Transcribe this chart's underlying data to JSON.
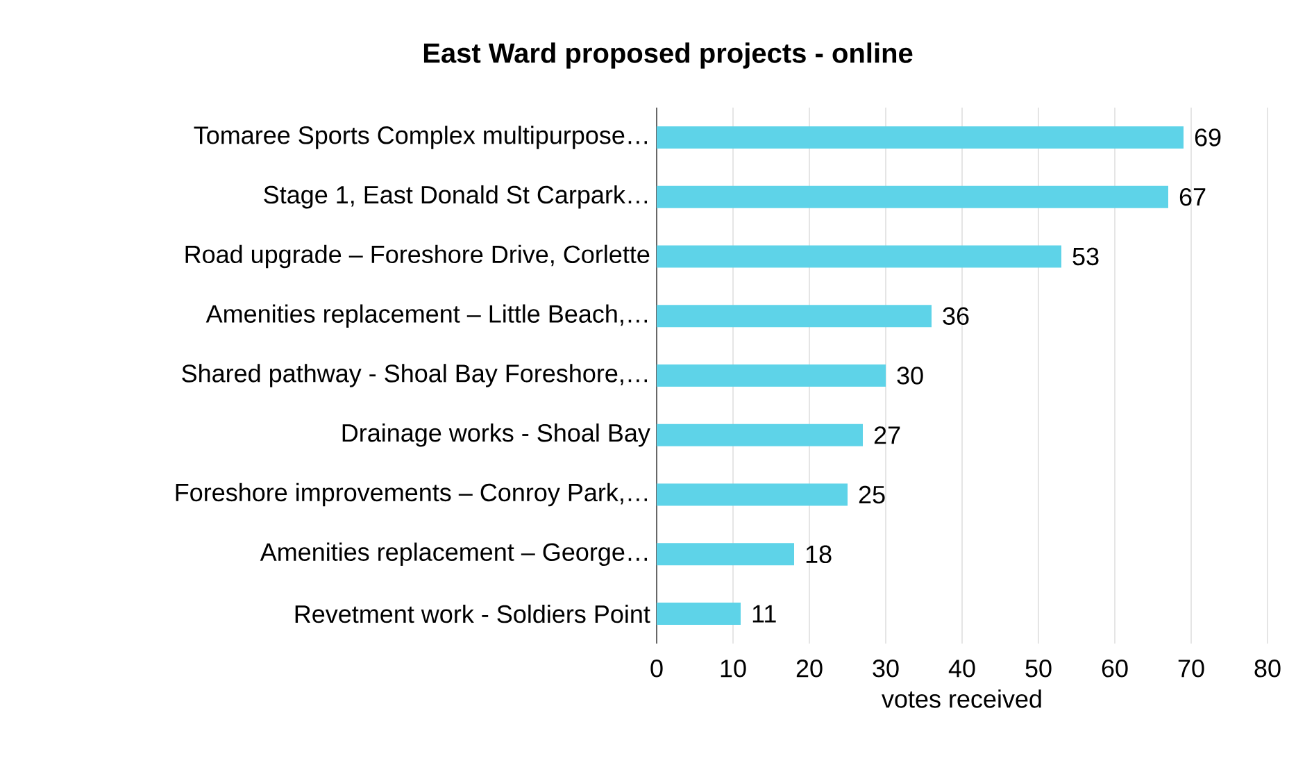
{
  "chart_data": {
    "type": "bar",
    "orientation": "horizontal",
    "title": "East Ward proposed projects - online",
    "xlabel": "votes received",
    "categories": [
      "Tomaree Sports Complex multipurpose…",
      "Stage 1, East Donald St Carpark…",
      "Road upgrade – Foreshore Drive, Corlette",
      "Amenities replacement – Little Beach,…",
      "Shared pathway - Shoal Bay Foreshore,…",
      "Drainage works - Shoal Bay",
      "Foreshore improvements – Conroy Park,…",
      "Amenities replacement – George…",
      "Revetment work - Soldiers Point"
    ],
    "values": [
      69,
      67,
      53,
      36,
      30,
      27,
      25,
      18,
      11
    ],
    "color": "#5ed3e8",
    "xlim": [
      0,
      80
    ],
    "xticks": [
      0,
      10,
      20,
      30,
      40,
      50,
      60,
      70,
      80
    ],
    "grid": "x",
    "data_labels": true
  }
}
